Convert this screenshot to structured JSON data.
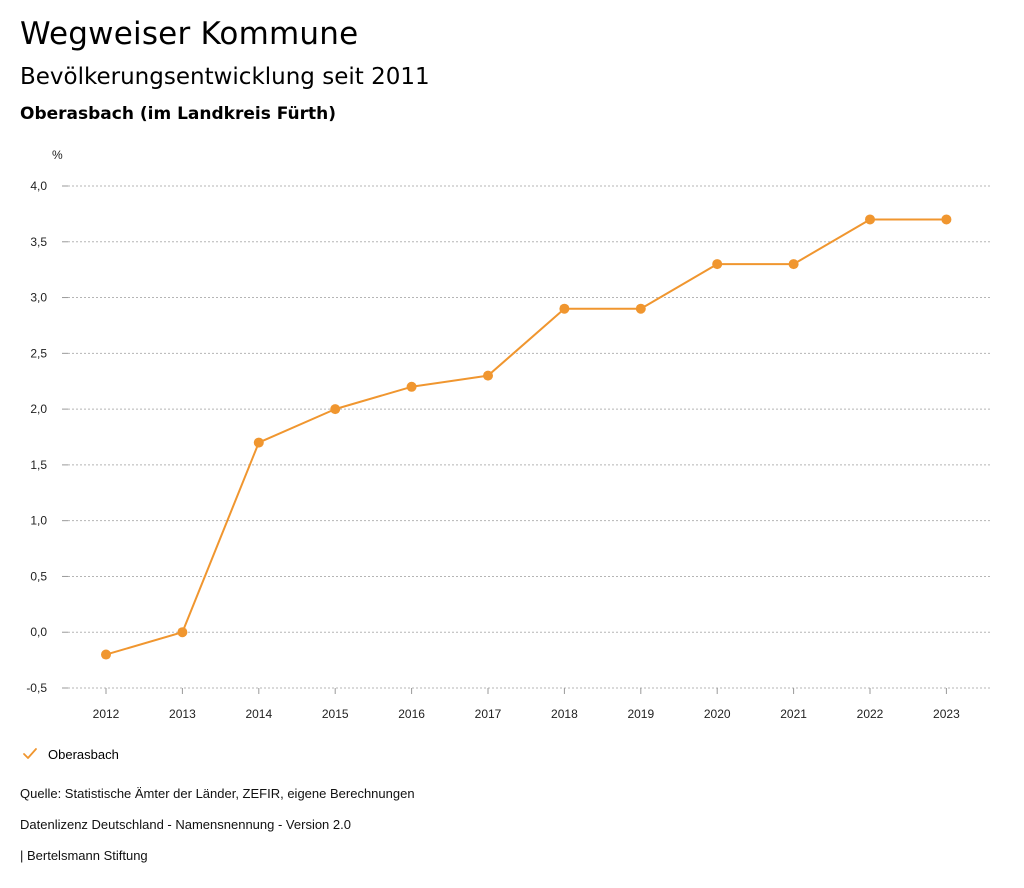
{
  "header": {
    "title": "Wegweiser Kommune",
    "subtitle": "Bevölkerungsentwicklung seit 2011",
    "region": "Oberasbach (im Landkreis Fürth)"
  },
  "chart_data": {
    "type": "line",
    "title": "Bevölkerungsentwicklung seit 2011",
    "ylabel": "%",
    "xlabel": "",
    "categories": [
      "2012",
      "2013",
      "2014",
      "2015",
      "2016",
      "2017",
      "2018",
      "2019",
      "2020",
      "2021",
      "2022",
      "2023"
    ],
    "series": [
      {
        "name": "Oberasbach",
        "color": "#f0962f",
        "values": [
          -0.2,
          0.0,
          1.7,
          2.0,
          2.2,
          2.3,
          2.9,
          2.9,
          3.3,
          3.3,
          3.7,
          3.7
        ]
      }
    ],
    "ylim": [
      -0.5,
      4.0
    ],
    "yticks": [
      "4,0",
      "3,5",
      "3,0",
      "2,5",
      "2,0",
      "1,5",
      "1,0",
      "0,5",
      "0,0",
      "-0,5"
    ],
    "ytick_values": [
      4.0,
      3.5,
      3.0,
      2.5,
      2.0,
      1.5,
      1.0,
      0.5,
      0.0,
      -0.5
    ],
    "grid": true,
    "legend_position": "bottom-left"
  },
  "legend": {
    "label": "Oberasbach",
    "icon": "checkmark-icon"
  },
  "footer": {
    "source": "Quelle: Statistische Ämter der Länder, ZEFIR, eigene Berechnungen",
    "license": "Datenlizenz Deutschland - Namensnennung - Version 2.0",
    "publisher": "| Bertelsmann Stiftung"
  }
}
